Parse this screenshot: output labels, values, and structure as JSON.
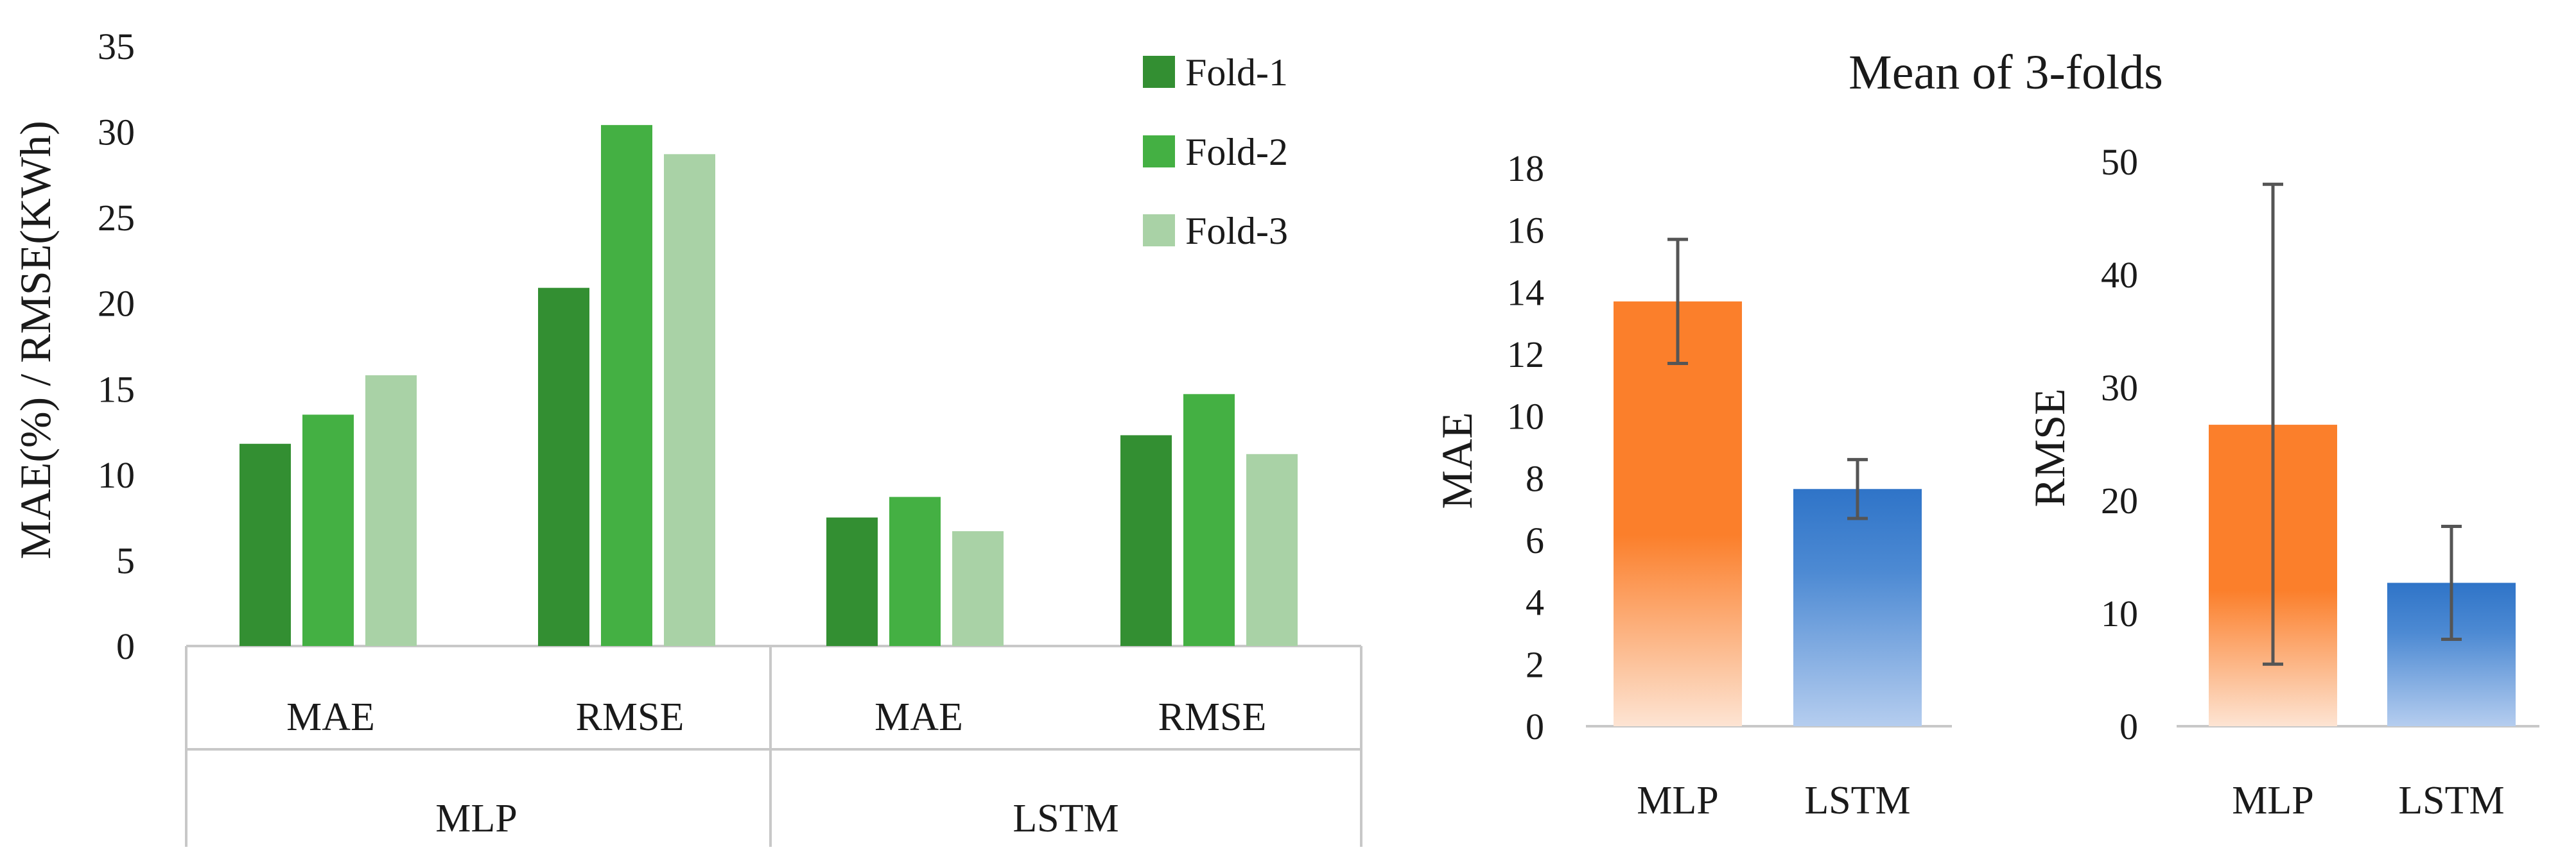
{
  "chart_data": [
    {
      "type": "bar",
      "ylabel": "MAE(%) / RMSE(KWh)",
      "ylim": [
        0,
        35
      ],
      "yticks": [
        0,
        5,
        10,
        15,
        20,
        25,
        30,
        35
      ],
      "groups": [
        {
          "label": "MLP",
          "categories": [
            "MAE",
            "RMSE"
          ]
        },
        {
          "label": "LSTM",
          "categories": [
            "MAE",
            "RMSE"
          ]
        }
      ],
      "series": [
        {
          "name": "Fold-1",
          "color": "#338f32",
          "values": [
            11.8,
            20.9,
            7.5,
            12.3
          ]
        },
        {
          "name": "Fold-2",
          "color": "#44b043",
          "values": [
            13.5,
            30.4,
            8.7,
            14.7
          ]
        },
        {
          "name": "Fold-3",
          "color": "#a9d2a6",
          "values": [
            15.8,
            28.7,
            6.7,
            11.2
          ]
        }
      ],
      "legend": "top-right",
      "grid": false
    },
    {
      "type": "bar",
      "title": "Mean of 3-folds",
      "ylabel": "MAE",
      "ylim": [
        0,
        18
      ],
      "yticks": [
        0,
        2,
        4,
        6,
        8,
        10,
        12,
        14,
        16,
        18
      ],
      "categories": [
        "MLP",
        "LSTM"
      ],
      "values": [
        13.7,
        7.65
      ],
      "error_low": [
        11.7,
        6.7
      ],
      "error_high": [
        15.7,
        8.6
      ],
      "colors": [
        "#fb7f2b",
        "#2f74c8"
      ],
      "grid": false
    },
    {
      "type": "bar",
      "ylabel": "RMSE",
      "ylim": [
        0,
        50
      ],
      "yticks": [
        0,
        10,
        20,
        30,
        40,
        50
      ],
      "categories": [
        "MLP",
        "LSTM"
      ],
      "values": [
        26.7,
        12.7
      ],
      "error_low": [
        5.5,
        7.7
      ],
      "error_high": [
        48.0,
        17.7
      ],
      "colors": [
        "#fb7f2b",
        "#2f74c8"
      ],
      "grid": false
    }
  ]
}
